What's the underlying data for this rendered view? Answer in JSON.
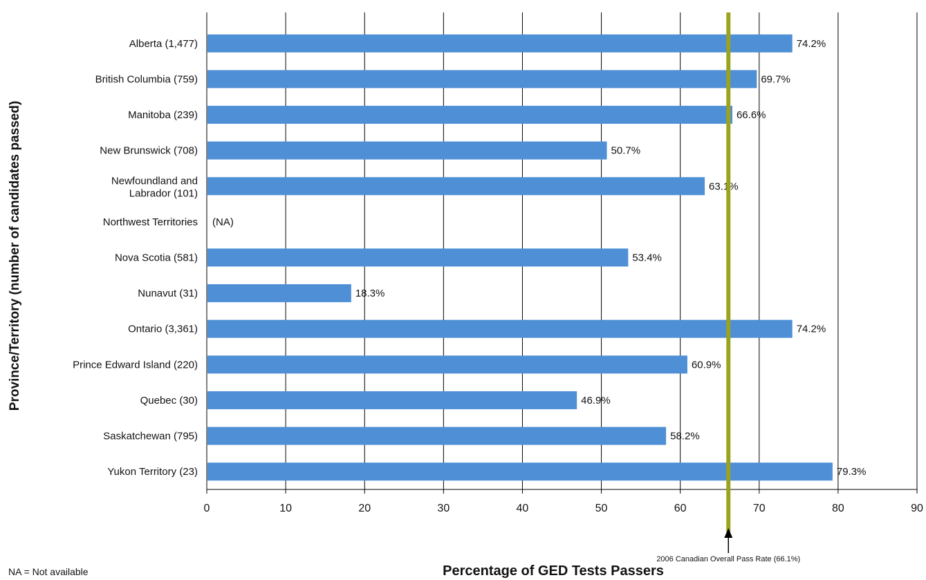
{
  "chart_data": {
    "type": "bar",
    "orientation": "horizontal",
    "categories": [
      "Alberta (1,477)",
      "British Columbia (759)",
      "Manitoba (239)",
      "New Brunswick (708)",
      "Newfoundland and Labrador (101)",
      "Northwest Territories",
      "Nova Scotia (581)",
      "Nunavut (31)",
      "Ontario (3,361)",
      "Prince Edward Island (220)",
      "Quebec (30)",
      "Saskatchewan (795)",
      "Yukon Territory (23)"
    ],
    "values": [
      74.2,
      69.7,
      66.6,
      50.7,
      63.1,
      null,
      53.4,
      18.3,
      74.2,
      60.9,
      46.9,
      58.2,
      79.3
    ],
    "value_labels": [
      "74.2%",
      "69.7%",
      "66.6%",
      "50.7%",
      "63.1%",
      "(NA)",
      "53.4%",
      "18.3%",
      "74.2%",
      "60.9%",
      "46.9%",
      "58.2%",
      "79.3%"
    ],
    "xlabel": "Percentage of GED Tests Passers",
    "ylabel": "Province/Territory (number of candidates passed)",
    "xlim": [
      0,
      90
    ],
    "xticks": [
      0,
      10,
      20,
      30,
      40,
      50,
      60,
      70,
      80,
      90
    ],
    "grid": "vertical",
    "bar_color": "#4f8fd6",
    "reference_line": {
      "value": 66.1,
      "label": "2006 Canadian Overall Pass Rate (66.1%)",
      "color": "#9aa31f"
    },
    "note": "NA = Not available"
  }
}
